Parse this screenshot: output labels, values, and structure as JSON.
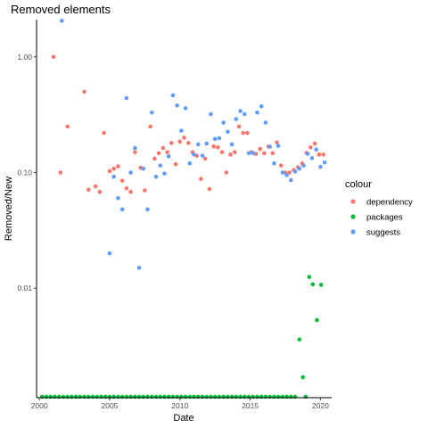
{
  "chart_data": {
    "type": "scatter",
    "title": "Removed elements",
    "xlabel": "Date",
    "ylabel": "Removed/New",
    "xlim": [
      1999.8,
      2020.8
    ],
    "ylim": [
      0.00113,
      2.1
    ],
    "yscale": "log",
    "grid": false,
    "x_ticks": [
      2000,
      2005,
      2010,
      2015,
      2020
    ],
    "x_tick_labels": [
      "2000",
      "2005",
      "2010",
      "2015",
      "2020"
    ],
    "y_ticks": [
      0.01,
      0.1,
      1
    ],
    "y_tick_labels": [
      "0.01",
      "0.10",
      "1.00"
    ],
    "legend": {
      "title": "colour",
      "placement": "right",
      "entries": [
        "dependency",
        "packages",
        "suggests"
      ]
    },
    "colors": {
      "dependency": "#F8766D",
      "packages": "#00BA38",
      "suggests": "#619CFF"
    },
    "series": [
      {
        "name": "dependency",
        "points": [
          [
            2001.0,
            1.0
          ],
          [
            2001.5,
            0.1
          ],
          [
            2002.0,
            0.25
          ],
          [
            2003.2,
            0.5
          ],
          [
            2003.5,
            0.071
          ],
          [
            2004.0,
            0.076
          ],
          [
            2004.3,
            0.068
          ],
          [
            2004.6,
            0.22
          ],
          [
            2005.0,
            0.103
          ],
          [
            2005.3,
            0.108
          ],
          [
            2005.6,
            0.113
          ],
          [
            2005.9,
            0.085
          ],
          [
            2006.2,
            0.073
          ],
          [
            2006.5,
            0.068
          ],
          [
            2006.8,
            0.15
          ],
          [
            2007.2,
            0.11
          ],
          [
            2007.5,
            0.07
          ],
          [
            2007.9,
            0.25
          ],
          [
            2008.2,
            0.132
          ],
          [
            2008.5,
            0.147
          ],
          [
            2008.8,
            0.163
          ],
          [
            2009.1,
            0.15
          ],
          [
            2009.4,
            0.18
          ],
          [
            2009.7,
            0.118
          ],
          [
            2010.0,
            0.185
          ],
          [
            2010.3,
            0.2
          ],
          [
            2010.6,
            0.18
          ],
          [
            2010.9,
            0.15
          ],
          [
            2011.2,
            0.14
          ],
          [
            2011.5,
            0.088
          ],
          [
            2011.8,
            0.132
          ],
          [
            2012.1,
            0.072
          ],
          [
            2012.4,
            0.168
          ],
          [
            2012.7,
            0.165
          ],
          [
            2013.0,
            0.15
          ],
          [
            2013.3,
            0.1
          ],
          [
            2013.6,
            0.143
          ],
          [
            2013.9,
            0.15
          ],
          [
            2014.2,
            0.25
          ],
          [
            2014.5,
            0.22
          ],
          [
            2014.8,
            0.22
          ],
          [
            2015.1,
            0.15
          ],
          [
            2015.4,
            0.145
          ],
          [
            2015.7,
            0.16
          ],
          [
            2016.0,
            0.147
          ],
          [
            2016.3,
            0.168
          ],
          [
            2016.6,
            0.147
          ],
          [
            2016.9,
            0.182
          ],
          [
            2017.2,
            0.115
          ],
          [
            2017.5,
            0.1
          ],
          [
            2017.8,
            0.1
          ],
          [
            2018.1,
            0.105
          ],
          [
            2018.4,
            0.111
          ],
          [
            2018.7,
            0.12
          ],
          [
            2019.0,
            0.148
          ],
          [
            2019.3,
            0.165
          ],
          [
            2019.6,
            0.178
          ],
          [
            2019.9,
            0.143
          ],
          [
            2020.2,
            0.143
          ]
        ]
      },
      {
        "name": "suggests",
        "points": [
          [
            2001.6,
            2.05
          ],
          [
            2005.0,
            0.02
          ],
          [
            2005.3,
            0.092
          ],
          [
            2005.6,
            0.06
          ],
          [
            2005.9,
            0.048
          ],
          [
            2006.2,
            0.44
          ],
          [
            2006.5,
            0.1
          ],
          [
            2006.8,
            0.163
          ],
          [
            2007.1,
            0.015
          ],
          [
            2007.4,
            0.108
          ],
          [
            2007.7,
            0.048
          ],
          [
            2008.0,
            0.33
          ],
          [
            2008.3,
            0.092
          ],
          [
            2008.6,
            0.115
          ],
          [
            2008.9,
            0.098
          ],
          [
            2009.2,
            0.138
          ],
          [
            2009.5,
            0.465
          ],
          [
            2009.8,
            0.38
          ],
          [
            2010.1,
            0.23
          ],
          [
            2010.4,
            0.36
          ],
          [
            2010.7,
            0.12
          ],
          [
            2011.0,
            0.143
          ],
          [
            2011.3,
            0.175
          ],
          [
            2011.6,
            0.14
          ],
          [
            2011.9,
            0.178
          ],
          [
            2012.2,
            0.32
          ],
          [
            2012.5,
            0.195
          ],
          [
            2012.8,
            0.198
          ],
          [
            2013.1,
            0.27
          ],
          [
            2013.4,
            0.225
          ],
          [
            2013.7,
            0.175
          ],
          [
            2014.0,
            0.29
          ],
          [
            2014.3,
            0.34
          ],
          [
            2014.6,
            0.32
          ],
          [
            2014.9,
            0.147
          ],
          [
            2015.2,
            0.147
          ],
          [
            2015.5,
            0.33
          ],
          [
            2015.8,
            0.373
          ],
          [
            2016.1,
            0.27
          ],
          [
            2016.4,
            0.167
          ],
          [
            2016.7,
            0.12
          ],
          [
            2017.0,
            0.17
          ],
          [
            2017.3,
            0.1
          ],
          [
            2017.6,
            0.095
          ],
          [
            2017.9,
            0.086
          ],
          [
            2018.2,
            0.102
          ],
          [
            2018.5,
            0.108
          ],
          [
            2018.8,
            0.115
          ],
          [
            2019.1,
            0.145
          ],
          [
            2019.4,
            0.133
          ],
          [
            2019.7,
            0.158
          ],
          [
            2020.0,
            0.112
          ],
          [
            2020.3,
            0.122
          ]
        ]
      },
      {
        "name": "packages",
        "points": [
          [
            2000.2,
            0.00115
          ],
          [
            2000.5,
            0.00115
          ],
          [
            2000.8,
            0.00115
          ],
          [
            2001.1,
            0.00115
          ],
          [
            2001.4,
            0.00115
          ],
          [
            2001.7,
            0.00115
          ],
          [
            2002.0,
            0.00115
          ],
          [
            2002.3,
            0.00115
          ],
          [
            2002.6,
            0.00115
          ],
          [
            2002.9,
            0.00115
          ],
          [
            2003.2,
            0.00115
          ],
          [
            2003.5,
            0.00115
          ],
          [
            2003.8,
            0.00115
          ],
          [
            2004.1,
            0.00115
          ],
          [
            2004.4,
            0.00115
          ],
          [
            2004.7,
            0.00115
          ],
          [
            2005.0,
            0.00115
          ],
          [
            2005.3,
            0.00115
          ],
          [
            2005.6,
            0.00115
          ],
          [
            2005.9,
            0.00115
          ],
          [
            2006.2,
            0.00115
          ],
          [
            2006.5,
            0.00115
          ],
          [
            2006.8,
            0.00115
          ],
          [
            2007.1,
            0.00115
          ],
          [
            2007.4,
            0.00115
          ],
          [
            2007.7,
            0.00115
          ],
          [
            2008.0,
            0.00115
          ],
          [
            2008.3,
            0.00115
          ],
          [
            2008.6,
            0.00115
          ],
          [
            2008.9,
            0.00115
          ],
          [
            2009.2,
            0.00115
          ],
          [
            2009.5,
            0.00115
          ],
          [
            2009.8,
            0.00115
          ],
          [
            2010.1,
            0.00115
          ],
          [
            2010.4,
            0.00115
          ],
          [
            2010.7,
            0.00115
          ],
          [
            2011.0,
            0.00115
          ],
          [
            2011.3,
            0.00115
          ],
          [
            2011.6,
            0.00115
          ],
          [
            2011.9,
            0.00115
          ],
          [
            2012.2,
            0.00115
          ],
          [
            2012.5,
            0.00115
          ],
          [
            2012.8,
            0.00115
          ],
          [
            2013.1,
            0.00115
          ],
          [
            2013.4,
            0.00115
          ],
          [
            2013.7,
            0.00115
          ],
          [
            2014.0,
            0.00115
          ],
          [
            2014.3,
            0.00115
          ],
          [
            2014.6,
            0.00115
          ],
          [
            2014.9,
            0.00115
          ],
          [
            2015.2,
            0.00115
          ],
          [
            2015.5,
            0.00115
          ],
          [
            2015.8,
            0.00115
          ],
          [
            2016.1,
            0.00115
          ],
          [
            2016.4,
            0.00115
          ],
          [
            2016.7,
            0.00115
          ],
          [
            2017.0,
            0.00115
          ],
          [
            2017.3,
            0.00115
          ],
          [
            2017.6,
            0.00115
          ],
          [
            2017.9,
            0.00115
          ],
          [
            2018.2,
            0.00115
          ],
          [
            2018.5,
            0.0036
          ],
          [
            2018.75,
            0.0017
          ],
          [
            2018.95,
            0.00115
          ],
          [
            2019.2,
            0.0125
          ],
          [
            2019.45,
            0.0108
          ],
          [
            2019.75,
            0.0053
          ],
          [
            2020.05,
            0.0107
          ]
        ]
      }
    ]
  }
}
